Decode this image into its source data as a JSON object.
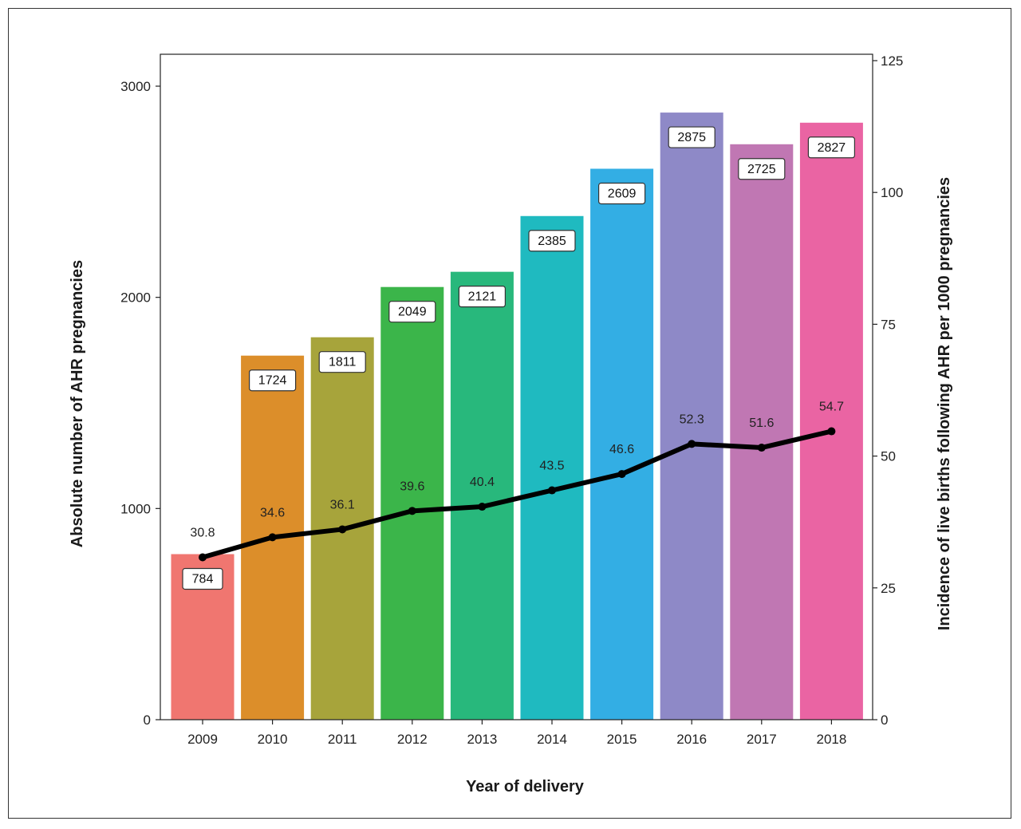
{
  "chart_data": {
    "type": "bar",
    "categories": [
      "2009",
      "2010",
      "2011",
      "2012",
      "2013",
      "2014",
      "2015",
      "2016",
      "2017",
      "2018"
    ],
    "series": [
      {
        "type": "bar",
        "values": [
          784,
          1724,
          1811,
          2049,
          2121,
          2385,
          2609,
          2875,
          2725,
          2827
        ],
        "colors": [
          "#f07670",
          "#dc8e2a",
          "#a7a43b",
          "#3bb54a",
          "#28b87c",
          "#1fbac0",
          "#33aee4",
          "#8e89c7",
          "#c077b3",
          "#ea64a3"
        ],
        "labels": [
          "784",
          "1724",
          "1811",
          "2049",
          "2121",
          "2385",
          "2609",
          "2875",
          "2725",
          "2827"
        ]
      },
      {
        "type": "line",
        "axis": "right",
        "values": [
          30.8,
          34.6,
          36.1,
          39.6,
          40.4,
          43.5,
          46.6,
          52.3,
          51.6,
          54.7
        ],
        "labels": [
          "30.8",
          "34.6",
          "36.1",
          "39.6",
          "40.4",
          "43.5",
          "46.6",
          "52.3",
          "51.6",
          "54.7"
        ],
        "color": "#000000"
      }
    ],
    "xlabel": "Year of delivery",
    "ylabel": "Absolute number of AHR pregnancies",
    "y2label": "Incidence of live births following AHR per 1000 pregnancies",
    "ylim": [
      0,
      3000
    ],
    "y2lim": [
      0,
      125
    ],
    "yticks": [
      "0",
      "1000",
      "2000",
      "3000"
    ],
    "y2ticks": [
      "0",
      "25",
      "50",
      "75",
      "100",
      "125"
    ],
    "grid": false
  }
}
